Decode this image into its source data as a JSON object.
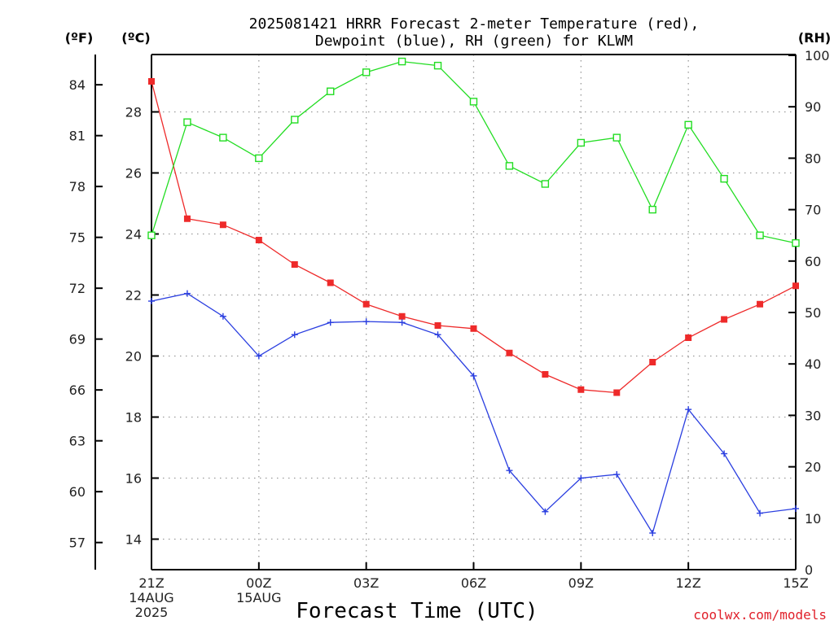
{
  "chart_data": {
    "type": "line",
    "title_line1": "2025081421 HRRR Forecast 2-meter Temperature (red),",
    "title_line2": "Dewpoint (blue), RH (green) for KLWM",
    "units": {
      "f": "(ºF)",
      "c": "(ºC)",
      "rh": "(RH)"
    },
    "xlabel": "Forecast Time (UTC)",
    "credit": "coolwx.com/models",
    "x_hours": [
      0,
      1,
      2,
      3,
      4,
      5,
      6,
      7,
      8,
      9,
      10,
      11,
      12,
      13,
      14,
      15,
      16,
      17,
      18
    ],
    "x_ticks": [
      {
        "hour": 0,
        "lines": [
          "21Z",
          "14AUG",
          "2025"
        ]
      },
      {
        "hour": 3,
        "lines": [
          "00Z",
          "15AUG"
        ]
      },
      {
        "hour": 6,
        "lines": [
          "03Z"
        ]
      },
      {
        "hour": 9,
        "lines": [
          "06Z"
        ]
      },
      {
        "hour": 12,
        "lines": [
          "09Z"
        ]
      },
      {
        "hour": 15,
        "lines": [
          "12Z"
        ]
      },
      {
        "hour": 18,
        "lines": [
          "15Z"
        ]
      }
    ],
    "c_axis": {
      "range": [
        13.0,
        26.0
      ],
      "ticks": [
        14,
        16,
        18,
        20,
        22,
        24,
        26,
        28
      ]
    },
    "f_axis": {
      "ticks": [
        57,
        60,
        63,
        66,
        69,
        72,
        75,
        78,
        81,
        84
      ]
    },
    "rh_axis": {
      "range": [
        0,
        100
      ],
      "ticks": [
        0,
        10,
        20,
        30,
        40,
        50,
        60,
        70,
        80,
        90,
        100
      ]
    },
    "grid": true,
    "series": [
      {
        "name": "Temperature",
        "color": "#ee2a2a",
        "marker": "filled-square",
        "axis": "c",
        "values": [
          29.0,
          24.5,
          24.3,
          23.8,
          23.0,
          22.4,
          21.7,
          21.3,
          21.0,
          20.9,
          20.1,
          19.4,
          18.9,
          18.8,
          19.8,
          20.6,
          21.2,
          21.7,
          22.3
        ]
      },
      {
        "name": "Dewpoint",
        "color": "#2a3ee0",
        "marker": "plus",
        "axis": "c",
        "values": [
          21.8,
          22.05,
          21.3,
          20.0,
          20.7,
          21.1,
          21.13,
          21.1,
          20.7,
          19.35,
          16.25,
          14.9,
          16.0,
          16.12,
          14.2,
          18.25,
          16.8,
          14.85,
          15.0
        ]
      },
      {
        "name": "RH",
        "color": "#22dd22",
        "marker": "open-square",
        "axis": "rh",
        "values": [
          65.0,
          87.0,
          84.0,
          80.0,
          87.5,
          93.0,
          96.7,
          98.8,
          98.0,
          91.0,
          78.5,
          75.0,
          83.0,
          84.0,
          70.0,
          86.5,
          76.0,
          65.0,
          63.5
        ]
      }
    ]
  }
}
